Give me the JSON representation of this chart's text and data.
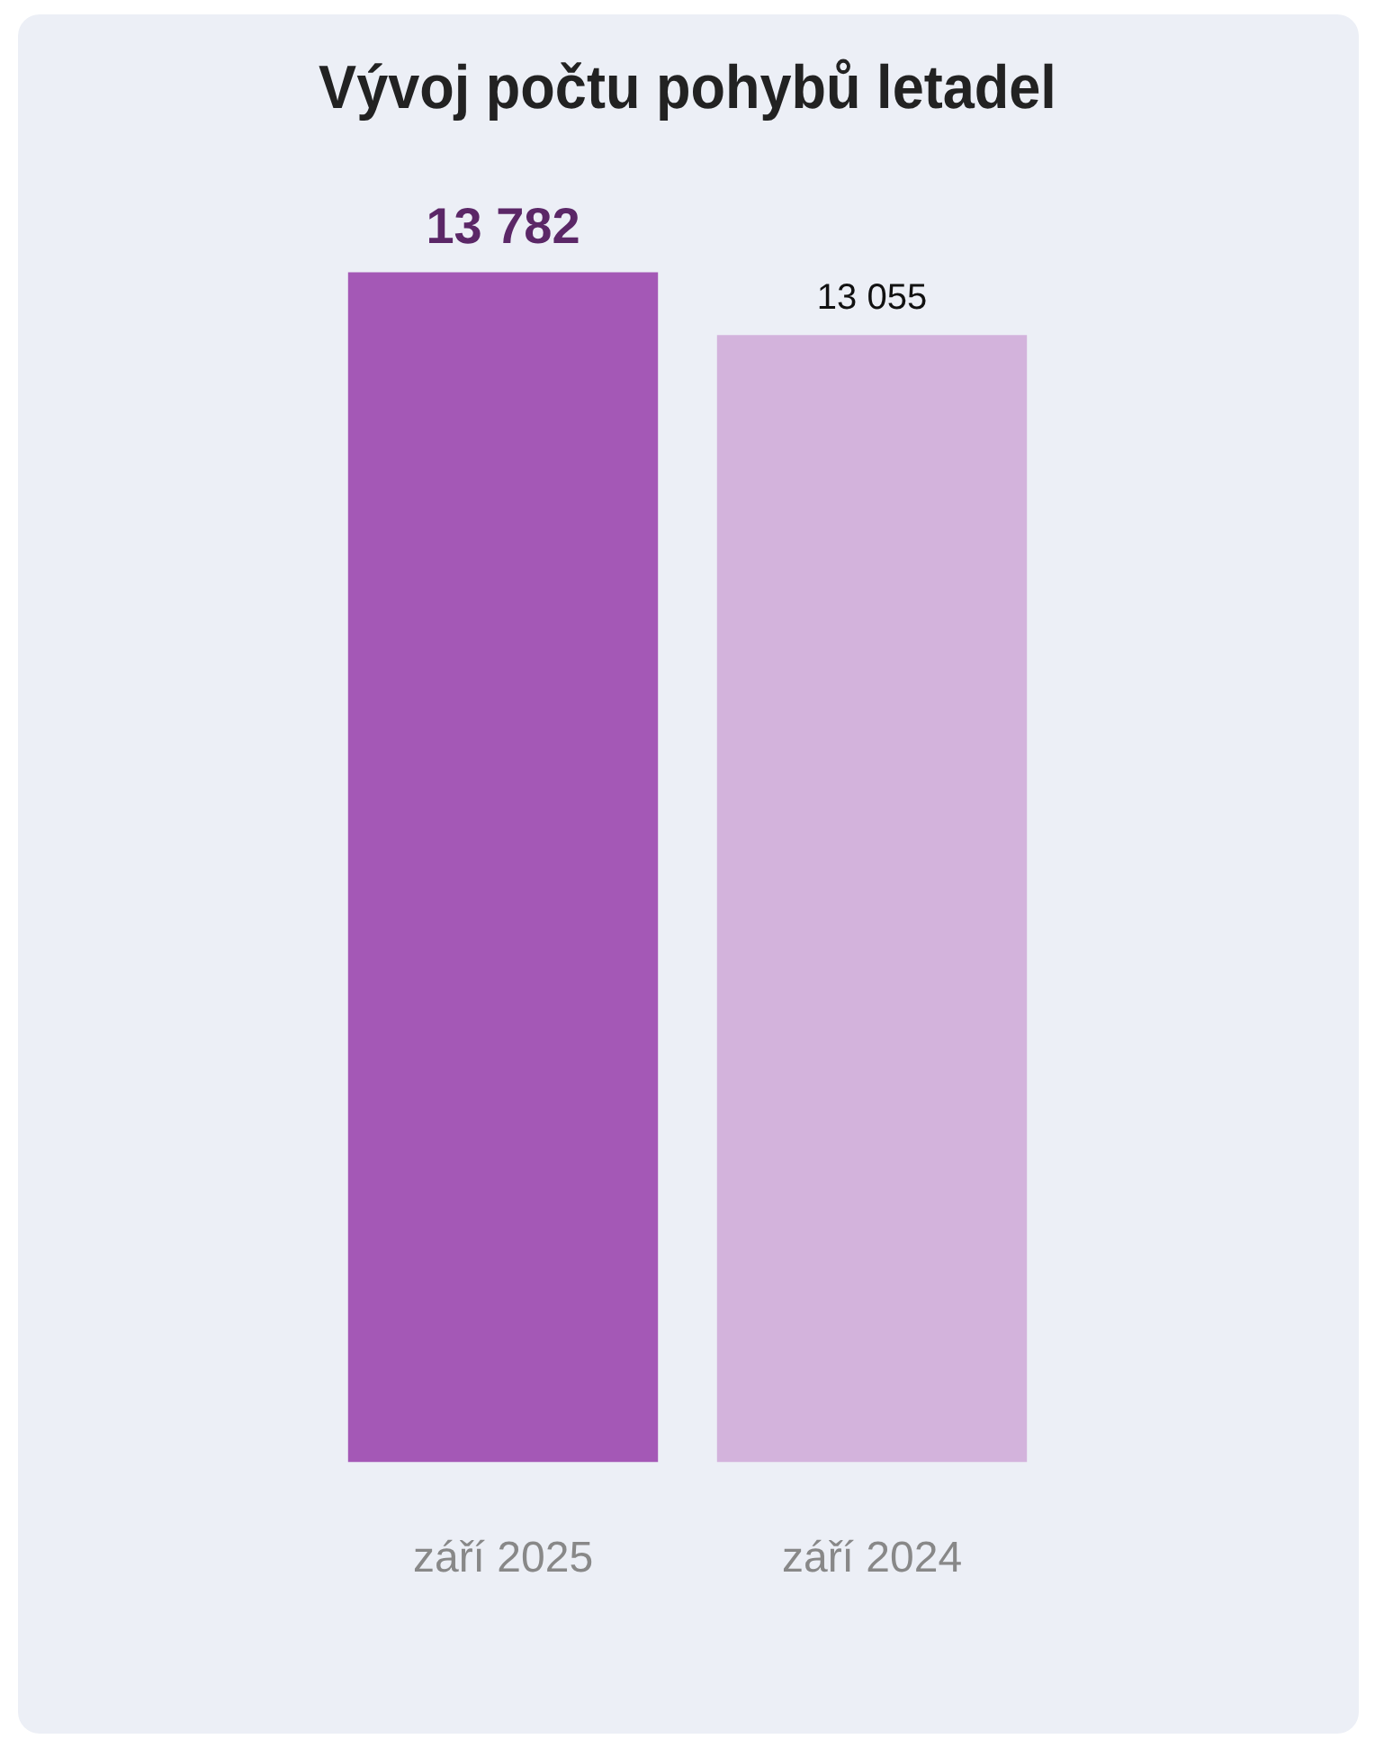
{
  "chart_data": {
    "type": "bar",
    "title": "Vývoj počtu pohybů letadel",
    "categories": [
      "září 2025",
      "září 2024"
    ],
    "values": [
      13782,
      13055
    ],
    "colors": [
      "#a458b6",
      "#d3b3dc"
    ],
    "value_labels": [
      "13 782",
      "13 055"
    ],
    "grid": false,
    "legend": false
  }
}
